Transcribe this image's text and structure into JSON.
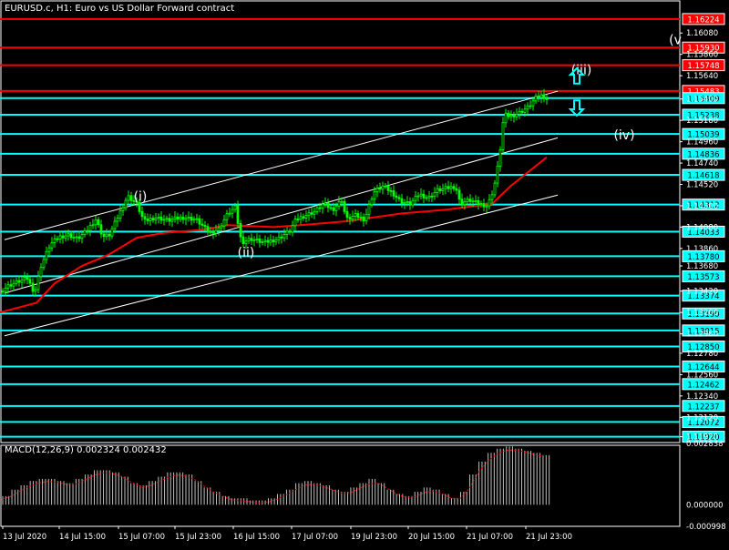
{
  "header": {
    "symbol_title": "EURUSD.c, H1:  Euro vs US Dollar Forward contract",
    "macd_title": "MACD(12,26,9) 0.002324 0.002432"
  },
  "colors": {
    "background": "#000000",
    "candle": "#00ff00",
    "moving_average": "#ff0000",
    "resistance": "#ff0000",
    "support": "#00ffff",
    "channel": "#ffffff",
    "macd_histogram": "#c0c0c0",
    "macd_signal": "#ff0000",
    "arrow": "#00ffff"
  },
  "chart_data": [
    {
      "type": "candlestick",
      "symbol": "EURUSD.c",
      "timeframe": "H1",
      "ylim": [
        1.1186,
        1.1642
      ],
      "x_tick_labels": [
        "13 Jul 2020",
        "14 Jul 15:00",
        "15 Jul 07:00",
        "15 Jul 23:00",
        "16 Jul 15:00",
        "17 Jul 07:00",
        "19 Jul 23:00",
        "20 Jul 15:00",
        "21 Jul 07:00",
        "21 Jul 23:00"
      ],
      "y_tick_labels": [
        "1.16080",
        "1.15860",
        "1.15640",
        "1.15400",
        "1.15180",
        "1.14960",
        "1.14740",
        "1.14520",
        "1.14300",
        "1.14080",
        "1.13860",
        "1.13680",
        "1.13420",
        "1.13200",
        "1.12980",
        "1.12780",
        "1.12560",
        "1.12340",
        "1.12120",
        "1.11920"
      ],
      "resistance_levels": [
        "1.16224",
        "1.15930",
        "1.15748",
        "1.15483"
      ],
      "support_levels": [
        "1.15409",
        "1.15238",
        "1.15039",
        "1.14836",
        "1.14618",
        "1.14312",
        "1.14033",
        "1.13780",
        "1.13573",
        "1.13374",
        "1.13190",
        "1.13015",
        "1.12850",
        "1.12644",
        "1.12462",
        "1.12237",
        "1.12072",
        "1.11920"
      ],
      "wave_labels": [
        "(i)",
        "(ii)",
        "(iii)",
        "(iv)",
        "(v"
      ],
      "price_series": [
        [
          0,
          1.1342
        ],
        [
          10,
          1.1348
        ],
        [
          20,
          1.1352
        ],
        [
          30,
          1.1355
        ],
        [
          38,
          1.134
        ],
        [
          45,
          1.1368
        ],
        [
          55,
          1.139
        ],
        [
          65,
          1.1398
        ],
        [
          75,
          1.14
        ],
        [
          85,
          1.1396
        ],
        [
          95,
          1.1404
        ],
        [
          105,
          1.1416
        ],
        [
          113,
          1.1398
        ],
        [
          120,
          1.14
        ],
        [
          130,
          1.142
        ],
        [
          140,
          1.144
        ],
        [
          150,
          1.1432
        ],
        [
          158,
          1.1414
        ],
        [
          170,
          1.1418
        ],
        [
          185,
          1.1415
        ],
        [
          200,
          1.1418
        ],
        [
          215,
          1.1416
        ],
        [
          230,
          1.1402
        ],
        [
          240,
          1.1406
        ],
        [
          250,
          1.1422
        ],
        [
          258,
          1.1428
        ],
        [
          265,
          1.1392
        ],
        [
          275,
          1.1396
        ],
        [
          290,
          1.1392
        ],
        [
          305,
          1.1396
        ],
        [
          318,
          1.1404
        ],
        [
          325,
          1.1416
        ],
        [
          335,
          1.142
        ],
        [
          345,
          1.1424
        ],
        [
          355,
          1.1432
        ],
        [
          365,
          1.1426
        ],
        [
          375,
          1.1436
        ],
        [
          380,
          1.1416
        ],
        [
          390,
          1.142
        ],
        [
          400,
          1.1416
        ],
        [
          410,
          1.1444
        ],
        [
          420,
          1.145
        ],
        [
          430,
          1.1444
        ],
        [
          440,
          1.1434
        ],
        [
          450,
          1.1432
        ],
        [
          460,
          1.1442
        ],
        [
          470,
          1.1438
        ],
        [
          480,
          1.1446
        ],
        [
          490,
          1.1448
        ],
        [
          500,
          1.145
        ],
        [
          505,
          1.1432
        ],
        [
          515,
          1.1436
        ],
        [
          525,
          1.1432
        ],
        [
          535,
          1.143
        ],
        [
          542,
          1.1448
        ],
        [
          548,
          1.148
        ],
        [
          553,
          1.1524
        ],
        [
          560,
          1.1522
        ],
        [
          570,
          1.1526
        ],
        [
          580,
          1.1532
        ],
        [
          588,
          1.1541
        ],
        [
          595,
          1.1544
        ],
        [
          602,
          1.1538
        ]
      ],
      "moving_average": [
        [
          0,
          1.132
        ],
        [
          40,
          1.133
        ],
        [
          60,
          1.135
        ],
        [
          90,
          1.1368
        ],
        [
          120,
          1.138
        ],
        [
          150,
          1.1397
        ],
        [
          180,
          1.1402
        ],
        [
          220,
          1.1405
        ],
        [
          250,
          1.141
        ],
        [
          300,
          1.1408
        ],
        [
          330,
          1.141
        ],
        [
          380,
          1.1414
        ],
        [
          440,
          1.1422
        ],
        [
          490,
          1.1426
        ],
        [
          540,
          1.1432
        ],
        [
          560,
          1.145
        ],
        [
          580,
          1.1465
        ],
        [
          600,
          1.148
        ]
      ]
    },
    {
      "type": "bar",
      "name": "MACD(12,26,9)",
      "values_label": [
        "0.002324",
        "0.002432"
      ],
      "ylim": [
        -0.000998,
        0.002838
      ],
      "y_tick_labels": [
        "0.002838",
        "0.000000",
        "-0.000998"
      ],
      "histogram": [
        0.0004,
        0.0007,
        0.0009,
        0.0011,
        0.0012,
        0.0012,
        0.0011,
        0.001,
        0.0012,
        0.0014,
        0.0016,
        0.0016,
        0.0015,
        0.0013,
        0.001,
        0.0009,
        0.0011,
        0.0013,
        0.0015,
        0.0015,
        0.0014,
        0.0011,
        0.0008,
        0.0006,
        0.0004,
        0.0003,
        0.0003,
        0.0002,
        0.0002,
        0.0003,
        0.0005,
        0.0007,
        0.001,
        0.0011,
        0.001,
        0.0009,
        0.0007,
        0.0006,
        0.0008,
        0.001,
        0.0012,
        0.001,
        0.0007,
        0.0005,
        0.0004,
        0.0006,
        0.0008,
        0.0007,
        0.0005,
        0.0003,
        0.0006,
        0.0014,
        0.002,
        0.0024,
        0.0026,
        0.0027,
        0.0026,
        0.0025,
        0.0024,
        0.0023
      ]
    }
  ]
}
